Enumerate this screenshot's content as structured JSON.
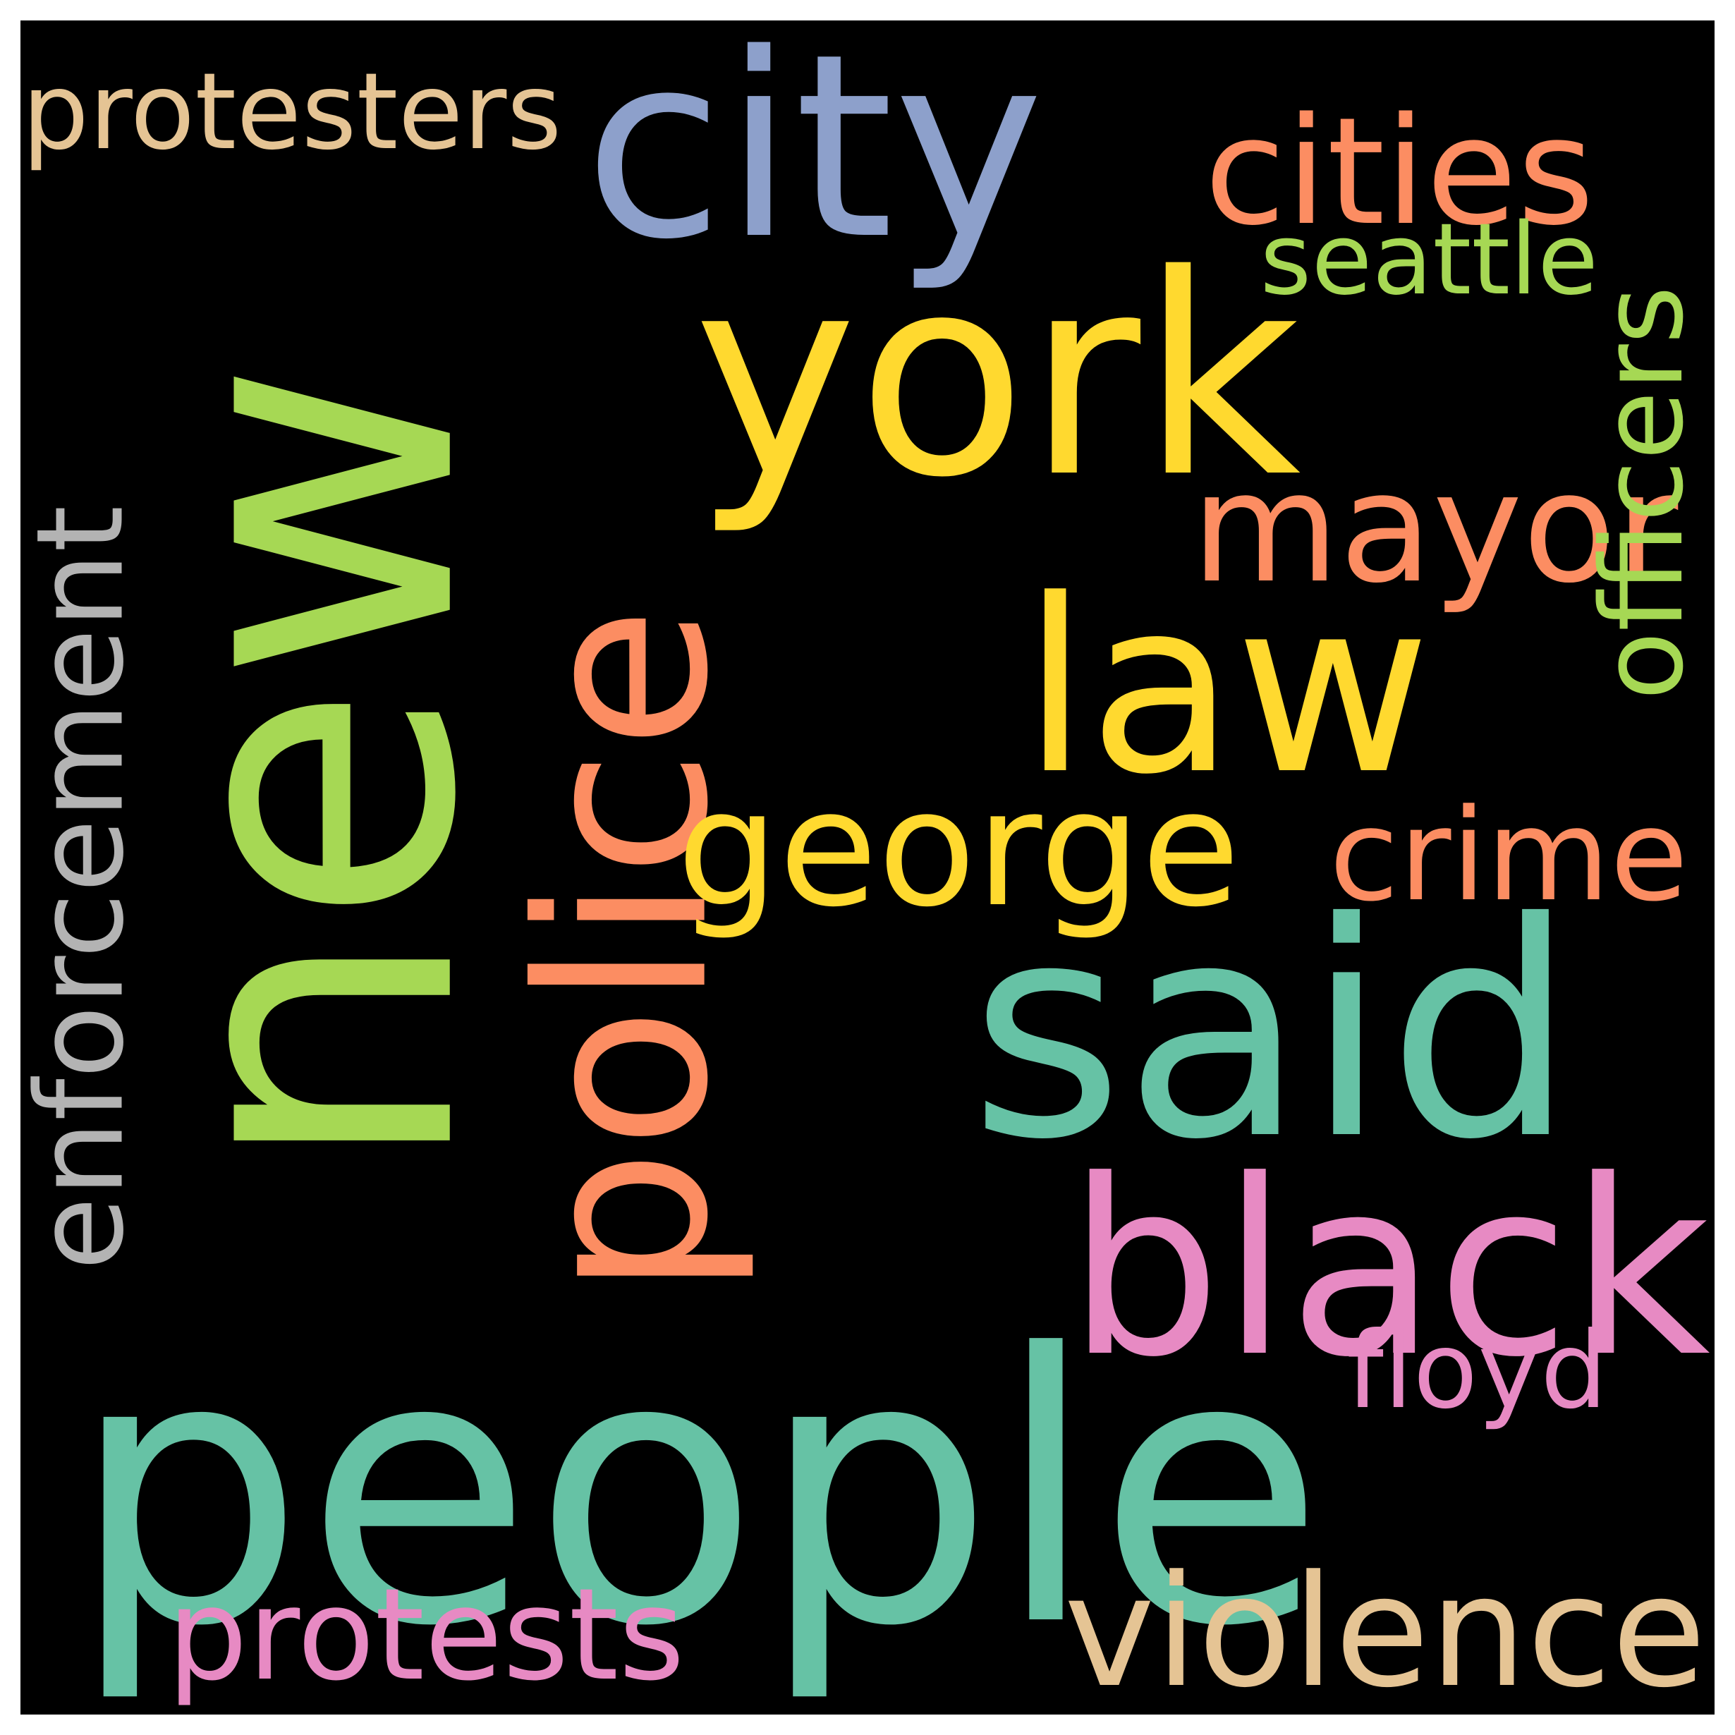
{
  "background": "#000000",
  "words": [
    {
      "text": "new",
      "color": "#a6d854",
      "weight": 1.0
    },
    {
      "text": "people",
      "color": "#66c2a5",
      "weight": 0.8
    },
    {
      "text": "york",
      "color": "#ffd92f",
      "weight": 0.55
    },
    {
      "text": "said",
      "color": "#66c2a5",
      "weight": 0.55
    },
    {
      "text": "law",
      "color": "#ffd92f",
      "weight": 0.55
    },
    {
      "text": "city",
      "color": "#8da0cb",
      "weight": 0.5
    },
    {
      "text": "police",
      "color": "#fc8d62",
      "weight": 0.48
    },
    {
      "text": "black",
      "color": "#e78ac3",
      "weight": 0.48
    },
    {
      "text": "george",
      "color": "#ffd92f",
      "weight": 0.32
    },
    {
      "text": "enforcement",
      "color": "#b3b3b3",
      "weight": 0.3
    },
    {
      "text": "cities",
      "color": "#fc8d62",
      "weight": 0.3
    },
    {
      "text": "mayor",
      "color": "#fc8d62",
      "weight": 0.28
    },
    {
      "text": "protests",
      "color": "#e78ac3",
      "weight": 0.25
    },
    {
      "text": "violence",
      "color": "#e5c494",
      "weight": 0.25
    },
    {
      "text": "officers",
      "color": "#a6d854",
      "weight": 0.22
    },
    {
      "text": "crime",
      "color": "#fc8d62",
      "weight": 0.22
    },
    {
      "text": "protesters",
      "color": "#e5c494",
      "weight": 0.2
    },
    {
      "text": "floyd",
      "color": "#e78ac3",
      "weight": 0.2
    },
    {
      "text": "seattle",
      "color": "#a6d854",
      "weight": 0.18
    }
  ]
}
